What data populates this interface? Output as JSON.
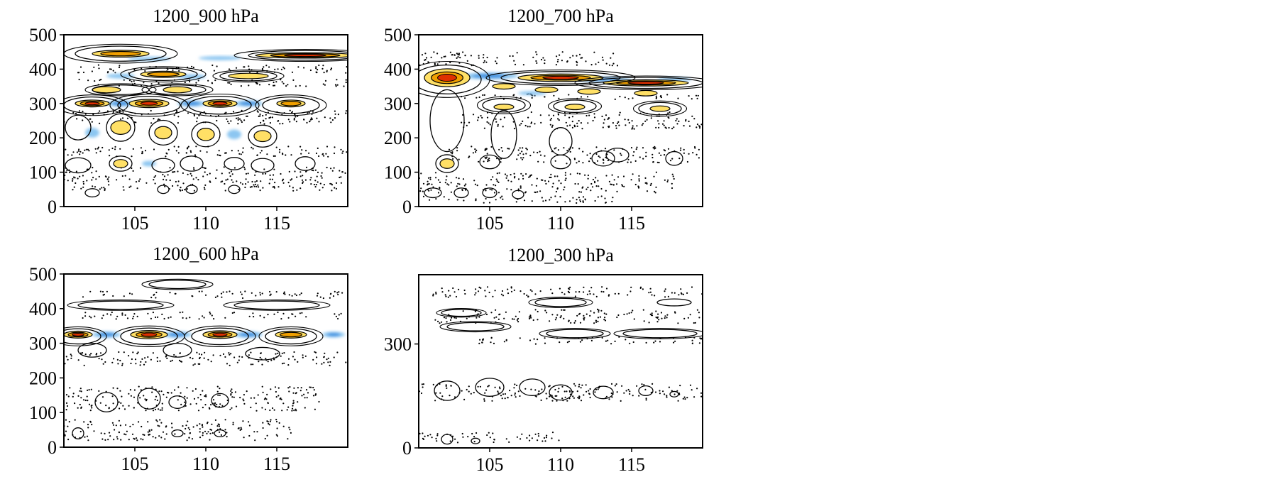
{
  "colors": {
    "positive_light": "#ffe066",
    "positive_mid": "#f0a000",
    "positive_strong": "#e03000",
    "negative_light": "#80c0f0",
    "negative_strong": "#3a8ee0",
    "contour_line": "#000000"
  },
  "chart_data": [
    {
      "type": "heatmap",
      "title": "1200_900 hPa",
      "xticks": [
        105,
        110,
        115
      ],
      "yticks": [
        0,
        100,
        200,
        300,
        400,
        500
      ],
      "xlim": [
        100,
        120
      ],
      "ylim": [
        0,
        500
      ],
      "positive_cores": [
        {
          "x": 104,
          "y": 445,
          "sx": 2.0,
          "sy": 10,
          "a": 2
        },
        {
          "x": 117,
          "y": 440,
          "sx": 3.5,
          "sy": 8,
          "a": 3
        },
        {
          "x": 107,
          "y": 385,
          "sx": 1.6,
          "sy": 9,
          "a": 2
        },
        {
          "x": 113,
          "y": 380,
          "sx": 1.4,
          "sy": 8,
          "a": 1
        },
        {
          "x": 103,
          "y": 340,
          "sx": 1.0,
          "sy": 9,
          "a": 1
        },
        {
          "x": 108,
          "y": 340,
          "sx": 1.0,
          "sy": 9,
          "a": 1
        },
        {
          "x": 102,
          "y": 300,
          "sx": 1.2,
          "sy": 10,
          "a": 3
        },
        {
          "x": 106,
          "y": 300,
          "sx": 1.4,
          "sy": 12,
          "a": 3
        },
        {
          "x": 111,
          "y": 300,
          "sx": 1.2,
          "sy": 11,
          "a": 3
        },
        {
          "x": 116,
          "y": 300,
          "sx": 1.0,
          "sy": 10,
          "a": 2
        },
        {
          "x": 104,
          "y": 230,
          "sx": 0.7,
          "sy": 20,
          "a": 1
        },
        {
          "x": 107,
          "y": 215,
          "sx": 0.6,
          "sy": 18,
          "a": 1
        },
        {
          "x": 110,
          "y": 210,
          "sx": 0.6,
          "sy": 18,
          "a": 1
        },
        {
          "x": 114,
          "y": 205,
          "sx": 0.6,
          "sy": 16,
          "a": 1
        },
        {
          "x": 104,
          "y": 125,
          "sx": 0.5,
          "sy": 12,
          "a": 1
        }
      ],
      "negative_cores": [
        {
          "x": 106,
          "y": 430,
          "sx": 1.5,
          "sy": 6,
          "a": 1
        },
        {
          "x": 111,
          "y": 432,
          "sx": 1.5,
          "sy": 6,
          "a": 1
        },
        {
          "x": 104,
          "y": 380,
          "sx": 1.0,
          "sy": 7,
          "a": 1
        },
        {
          "x": 109,
          "y": 378,
          "sx": 1.0,
          "sy": 7,
          "a": 1
        },
        {
          "x": 104,
          "y": 300,
          "sx": 1.0,
          "sy": 9,
          "a": 2
        },
        {
          "x": 109,
          "y": 300,
          "sx": 1.0,
          "sy": 9,
          "a": 2
        },
        {
          "x": 113,
          "y": 300,
          "sx": 1.0,
          "sy": 9,
          "a": 2
        },
        {
          "x": 102,
          "y": 215,
          "sx": 0.5,
          "sy": 14,
          "a": 1
        },
        {
          "x": 112,
          "y": 210,
          "sx": 0.5,
          "sy": 14,
          "a": 1
        },
        {
          "x": 106,
          "y": 125,
          "sx": 0.5,
          "sy": 8,
          "a": 1
        }
      ],
      "solid_contours": [
        {
          "x": 104,
          "y": 445,
          "rx": 3.2,
          "ry": 22
        },
        {
          "x": 117,
          "y": 440,
          "rx": 4.0,
          "ry": 14
        },
        {
          "x": 107,
          "y": 385,
          "rx": 2.4,
          "ry": 18
        },
        {
          "x": 113,
          "y": 380,
          "rx": 2.0,
          "ry": 14
        },
        {
          "x": 104,
          "y": 340,
          "rx": 2.0,
          "ry": 14
        },
        {
          "x": 108,
          "y": 340,
          "rx": 2.0,
          "ry": 14
        },
        {
          "x": 102,
          "y": 295,
          "rx": 2.0,
          "ry": 24
        },
        {
          "x": 106,
          "y": 295,
          "rx": 2.2,
          "ry": 26
        },
        {
          "x": 111,
          "y": 295,
          "rx": 2.2,
          "ry": 26
        },
        {
          "x": 116,
          "y": 295,
          "rx": 2.0,
          "ry": 24
        },
        {
          "x": 101,
          "y": 230,
          "rx": 0.9,
          "ry": 36
        },
        {
          "x": 104,
          "y": 230,
          "rx": 1.0,
          "ry": 40
        },
        {
          "x": 107,
          "y": 215,
          "rx": 1.0,
          "ry": 36
        },
        {
          "x": 110,
          "y": 210,
          "rx": 1.0,
          "ry": 36
        },
        {
          "x": 114,
          "y": 205,
          "rx": 1.0,
          "ry": 32
        },
        {
          "x": 101,
          "y": 120,
          "rx": 0.9,
          "ry": 22
        },
        {
          "x": 104,
          "y": 125,
          "rx": 0.8,
          "ry": 22
        },
        {
          "x": 107,
          "y": 120,
          "rx": 0.8,
          "ry": 20
        },
        {
          "x": 109,
          "y": 125,
          "rx": 0.8,
          "ry": 22
        },
        {
          "x": 112,
          "y": 125,
          "rx": 0.7,
          "ry": 18
        },
        {
          "x": 114,
          "y": 120,
          "rx": 0.8,
          "ry": 20
        },
        {
          "x": 117,
          "y": 125,
          "rx": 0.7,
          "ry": 20
        },
        {
          "x": 102,
          "y": 40,
          "rx": 0.5,
          "ry": 12
        },
        {
          "x": 107,
          "y": 50,
          "rx": 0.4,
          "ry": 12
        },
        {
          "x": 109,
          "y": 50,
          "rx": 0.4,
          "ry": 12
        },
        {
          "x": 112,
          "y": 50,
          "rx": 0.4,
          "ry": 12
        }
      ],
      "dotted_bands": [
        {
          "y": 400,
          "h": 24,
          "x0": 101,
          "x1": 120
        },
        {
          "y": 360,
          "h": 20,
          "x0": 101,
          "x1": 120
        },
        {
          "y": 260,
          "h": 40,
          "x0": 100,
          "x1": 120
        },
        {
          "y": 160,
          "h": 30,
          "x0": 100,
          "x1": 120
        },
        {
          "y": 80,
          "h": 70,
          "x0": 100,
          "x1": 120
        }
      ]
    },
    {
      "type": "heatmap",
      "title": "1200_700 hPa",
      "xticks": [
        105,
        110,
        115
      ],
      "yticks": [
        0,
        100,
        200,
        300,
        400,
        500
      ],
      "xlim": [
        100,
        120
      ],
      "ylim": [
        0,
        500
      ],
      "positive_cores": [
        {
          "x": 102,
          "y": 375,
          "sx": 1.6,
          "sy": 26,
          "a": 3
        },
        {
          "x": 110,
          "y": 375,
          "sx": 3.0,
          "sy": 11,
          "a": 3
        },
        {
          "x": 116,
          "y": 360,
          "sx": 3.0,
          "sy": 9,
          "a": 3
        },
        {
          "x": 106,
          "y": 350,
          "sx": 0.8,
          "sy": 8,
          "a": 1
        },
        {
          "x": 109,
          "y": 340,
          "sx": 0.8,
          "sy": 8,
          "a": 1
        },
        {
          "x": 112,
          "y": 335,
          "sx": 0.8,
          "sy": 8,
          "a": 1
        },
        {
          "x": 116,
          "y": 330,
          "sx": 0.8,
          "sy": 8,
          "a": 1
        },
        {
          "x": 106,
          "y": 290,
          "sx": 0.7,
          "sy": 8,
          "a": 1
        },
        {
          "x": 111,
          "y": 290,
          "sx": 0.7,
          "sy": 8,
          "a": 1
        },
        {
          "x": 117,
          "y": 285,
          "sx": 0.7,
          "sy": 8,
          "a": 1
        },
        {
          "x": 102,
          "y": 125,
          "sx": 0.5,
          "sy": 14,
          "a": 1
        }
      ],
      "negative_cores": [
        {
          "x": 105,
          "y": 380,
          "sx": 2.0,
          "sy": 10,
          "a": 2
        },
        {
          "x": 113,
          "y": 370,
          "sx": 2.0,
          "sy": 7,
          "a": 2
        },
        {
          "x": 118,
          "y": 370,
          "sx": 1.2,
          "sy": 6,
          "a": 1
        },
        {
          "x": 108,
          "y": 330,
          "sx": 1.0,
          "sy": 6,
          "a": 1
        }
      ],
      "solid_contours": [
        {
          "x": 102,
          "y": 370,
          "rx": 2.4,
          "ry": 42
        },
        {
          "x": 110,
          "y": 375,
          "rx": 4.2,
          "ry": 18
        },
        {
          "x": 116,
          "y": 360,
          "rx": 4.0,
          "ry": 16
        },
        {
          "x": 106,
          "y": 295,
          "rx": 1.5,
          "ry": 20
        },
        {
          "x": 111,
          "y": 292,
          "rx": 1.5,
          "ry": 18
        },
        {
          "x": 117,
          "y": 285,
          "rx": 1.5,
          "ry": 18
        },
        {
          "x": 102,
          "y": 250,
          "rx": 1.2,
          "ry": 90
        },
        {
          "x": 106,
          "y": 210,
          "rx": 0.9,
          "ry": 70
        },
        {
          "x": 110,
          "y": 190,
          "rx": 0.8,
          "ry": 40
        },
        {
          "x": 114,
          "y": 150,
          "rx": 0.8,
          "ry": 20
        },
        {
          "x": 102,
          "y": 125,
          "rx": 0.8,
          "ry": 26
        },
        {
          "x": 105,
          "y": 130,
          "rx": 0.7,
          "ry": 20
        },
        {
          "x": 110,
          "y": 130,
          "rx": 0.7,
          "ry": 20
        },
        {
          "x": 113,
          "y": 140,
          "rx": 0.8,
          "ry": 22
        },
        {
          "x": 118,
          "y": 140,
          "rx": 0.6,
          "ry": 20
        },
        {
          "x": 101,
          "y": 40,
          "rx": 0.6,
          "ry": 14
        },
        {
          "x": 103,
          "y": 40,
          "rx": 0.5,
          "ry": 14
        },
        {
          "x": 105,
          "y": 40,
          "rx": 0.5,
          "ry": 14
        },
        {
          "x": 107,
          "y": 35,
          "rx": 0.4,
          "ry": 12
        }
      ],
      "dotted_bands": [
        {
          "y": 430,
          "h": 40,
          "x0": 100,
          "x1": 114
        },
        {
          "y": 320,
          "h": 16,
          "x0": 103,
          "x1": 120
        },
        {
          "y": 250,
          "h": 50,
          "x0": 103,
          "x1": 120
        },
        {
          "y": 150,
          "h": 50,
          "x0": 102,
          "x1": 120
        },
        {
          "y": 70,
          "h": 60,
          "x0": 100,
          "x1": 118
        },
        {
          "y": 20,
          "h": 20,
          "x0": 100,
          "x1": 114
        }
      ]
    },
    {
      "type": "heatmap",
      "title": "1200_600 hPa",
      "xticks": [
        105,
        110,
        115
      ],
      "yticks": [
        0,
        100,
        200,
        300,
        400,
        500
      ],
      "xlim": [
        100,
        120
      ],
      "ylim": [
        0,
        500
      ],
      "positive_cores": [
        {
          "x": 101,
          "y": 325,
          "sx": 1.0,
          "sy": 10,
          "a": 3
        },
        {
          "x": 106,
          "y": 325,
          "sx": 1.3,
          "sy": 12,
          "a": 3
        },
        {
          "x": 111,
          "y": 325,
          "sx": 1.2,
          "sy": 11,
          "a": 3
        },
        {
          "x": 116,
          "y": 325,
          "sx": 1.1,
          "sy": 10,
          "a": 2
        }
      ],
      "negative_cores": [
        {
          "x": 103,
          "y": 325,
          "sx": 1.0,
          "sy": 9,
          "a": 2
        },
        {
          "x": 108,
          "y": 325,
          "sx": 1.0,
          "sy": 9,
          "a": 2
        },
        {
          "x": 113,
          "y": 325,
          "sx": 1.0,
          "sy": 9,
          "a": 2
        },
        {
          "x": 119,
          "y": 325,
          "sx": 0.8,
          "sy": 8,
          "a": 2
        }
      ],
      "solid_contours": [
        {
          "x": 104,
          "y": 410,
          "rx": 3.0,
          "ry": 12
        },
        {
          "x": 108,
          "y": 470,
          "rx": 2.0,
          "ry": 12
        },
        {
          "x": 115,
          "y": 410,
          "rx": 3.0,
          "ry": 12
        },
        {
          "x": 101,
          "y": 320,
          "rx": 1.6,
          "ry": 22
        },
        {
          "x": 106,
          "y": 320,
          "rx": 2.0,
          "ry": 24
        },
        {
          "x": 111,
          "y": 320,
          "rx": 2.0,
          "ry": 24
        },
        {
          "x": 116,
          "y": 320,
          "rx": 1.8,
          "ry": 22
        },
        {
          "x": 102,
          "y": 280,
          "rx": 1.0,
          "ry": 20
        },
        {
          "x": 108,
          "y": 280,
          "rx": 1.0,
          "ry": 20
        },
        {
          "x": 114,
          "y": 270,
          "rx": 1.2,
          "ry": 18
        },
        {
          "x": 103,
          "y": 130,
          "rx": 0.8,
          "ry": 28
        },
        {
          "x": 106,
          "y": 140,
          "rx": 0.8,
          "ry": 30
        },
        {
          "x": 108,
          "y": 130,
          "rx": 0.6,
          "ry": 18
        },
        {
          "x": 111,
          "y": 135,
          "rx": 0.6,
          "ry": 20
        },
        {
          "x": 101,
          "y": 40,
          "rx": 0.4,
          "ry": 16
        },
        {
          "x": 108,
          "y": 40,
          "rx": 0.4,
          "ry": 10
        },
        {
          "x": 111,
          "y": 40,
          "rx": 0.4,
          "ry": 10
        }
      ],
      "dotted_bands": [
        {
          "y": 440,
          "h": 20,
          "x0": 101,
          "x1": 120
        },
        {
          "y": 380,
          "h": 20,
          "x0": 101,
          "x1": 120
        },
        {
          "y": 255,
          "h": 40,
          "x0": 100,
          "x1": 120
        },
        {
          "y": 140,
          "h": 70,
          "x0": 100,
          "x1": 118
        },
        {
          "y": 50,
          "h": 60,
          "x0": 100,
          "x1": 116
        }
      ]
    },
    {
      "type": "heatmap",
      "title": "1200_300 hPa",
      "xticks": [
        105,
        110,
        115
      ],
      "yticks": [
        0,
        300
      ],
      "xlim": [
        100,
        120
      ],
      "ylim": [
        0,
        500
      ],
      "positive_cores": [],
      "negative_cores": [],
      "solid_contours": [
        {
          "x": 103,
          "y": 390,
          "rx": 1.4,
          "ry": 10
        },
        {
          "x": 104,
          "y": 350,
          "rx": 2.0,
          "ry": 12
        },
        {
          "x": 110,
          "y": 420,
          "rx": 1.8,
          "ry": 12
        },
        {
          "x": 111,
          "y": 330,
          "rx": 2.0,
          "ry": 12
        },
        {
          "x": 117,
          "y": 330,
          "rx": 2.6,
          "ry": 12
        },
        {
          "x": 118,
          "y": 420,
          "rx": 1.2,
          "ry": 10
        },
        {
          "x": 102,
          "y": 165,
          "rx": 0.9,
          "ry": 28
        },
        {
          "x": 105,
          "y": 175,
          "rx": 1.0,
          "ry": 26
        },
        {
          "x": 108,
          "y": 175,
          "rx": 0.9,
          "ry": 24
        },
        {
          "x": 110,
          "y": 160,
          "rx": 0.8,
          "ry": 22
        },
        {
          "x": 113,
          "y": 160,
          "rx": 0.7,
          "ry": 18
        },
        {
          "x": 116,
          "y": 165,
          "rx": 0.5,
          "ry": 14
        },
        {
          "x": 118,
          "y": 155,
          "rx": 0.3,
          "ry": 8
        },
        {
          "x": 102,
          "y": 25,
          "rx": 0.4,
          "ry": 14
        },
        {
          "x": 104,
          "y": 20,
          "rx": 0.3,
          "ry": 8
        }
      ],
      "dotted_bands": [
        {
          "y": 450,
          "h": 30,
          "x0": 101,
          "x1": 120
        },
        {
          "y": 380,
          "h": 40,
          "x0": 101,
          "x1": 120
        },
        {
          "y": 310,
          "h": 20,
          "x0": 104,
          "x1": 120
        },
        {
          "y": 160,
          "h": 50,
          "x0": 100,
          "x1": 120
        },
        {
          "y": 30,
          "h": 30,
          "x0": 100,
          "x1": 110
        }
      ]
    }
  ]
}
